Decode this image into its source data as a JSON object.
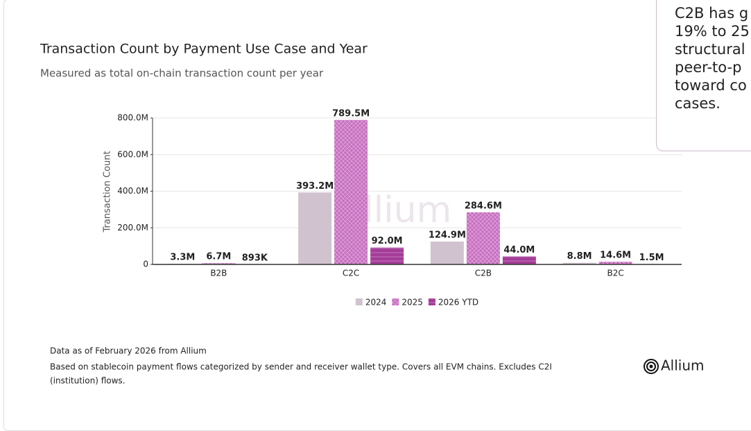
{
  "chart_data": {
    "type": "bar",
    "title": "Transaction Count by Payment Use Case and Year",
    "subtitle": "Measured as total on-chain transaction count per year",
    "y_label": "Transaction Count",
    "categories": [
      "B2B",
      "C2C",
      "C2B",
      "B2C"
    ],
    "series": [
      {
        "name": "2024",
        "color": "#d0c3cf",
        "values": [
          3.3,
          393.2,
          124.9,
          8.8
        ],
        "value_labels": [
          "3.3M",
          "393.2M",
          "124.9M",
          "8.8M"
        ]
      },
      {
        "name": "2025",
        "color": "#c76cbf",
        "values": [
          6.7,
          789.5,
          284.6,
          14.6
        ],
        "value_labels": [
          "6.7M",
          "789.5M",
          "284.6M",
          "14.6M"
        ]
      },
      {
        "name": "2026 YTD",
        "color": "#a53c99",
        "values": [
          0.893,
          92.0,
          44.0,
          1.5
        ],
        "value_labels": [
          "893K",
          "92.0M",
          "44.0M",
          "1.5M"
        ]
      }
    ],
    "ylim": [
      0,
      800
    ],
    "yticks": [
      0,
      {
        "value": 200,
        "label": "200.0M"
      },
      {
        "value": 400,
        "label": "400.0M"
      },
      {
        "value": 600,
        "label": "600.0M"
      },
      {
        "value": 800,
        "label": "800.0M"
      }
    ],
    "grid": true,
    "watermark": "Allium"
  },
  "footer": {
    "source": "Data as of February 2026 from Allium",
    "note_lines": [
      "Based on stablecoin payment flows categorized by sender and receiver wallet type. Covers all EVM chains. Excludes C2I",
      "(institution) flows."
    ],
    "brand": "Allium"
  },
  "insight": {
    "lines": [
      "C2B has g",
      "19% to 25",
      "structural",
      "peer-to-p",
      "toward co",
      "cases."
    ]
  }
}
